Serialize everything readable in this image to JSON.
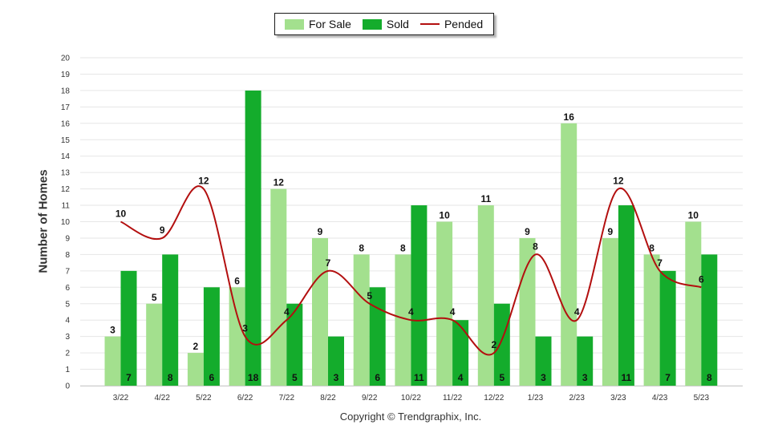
{
  "legend": {
    "for_sale_label": "For Sale",
    "sold_label": "Sold",
    "pended_label": "Pended"
  },
  "copyright": "Copyright © Trendgraphix, Inc.",
  "colors": {
    "for_sale": "#a3e08e",
    "sold": "#14ac2c",
    "pended": "#b30f0f",
    "gridline": "#e6e6e6",
    "axis_text": "#333333"
  },
  "chart_data": {
    "type": "bar",
    "categories": [
      "3/22",
      "4/22",
      "5/22",
      "6/22",
      "7/22",
      "8/22",
      "9/22",
      "10/22",
      "11/22",
      "12/22",
      "1/23",
      "2/23",
      "3/23",
      "4/23",
      "5/23"
    ],
    "series": [
      {
        "name": "For Sale",
        "type": "bar",
        "values": [
          3,
          5,
          2,
          6,
          12,
          9,
          8,
          8,
          10,
          11,
          9,
          16,
          9,
          8,
          10
        ]
      },
      {
        "name": "Sold",
        "type": "bar",
        "values": [
          7,
          8,
          6,
          18,
          5,
          3,
          6,
          11,
          4,
          5,
          3,
          3,
          11,
          7,
          8
        ]
      },
      {
        "name": "Pended",
        "type": "line",
        "smooth": true,
        "values": [
          10,
          9,
          12,
          3,
          4,
          7,
          5,
          4,
          4,
          2,
          8,
          4,
          12,
          7,
          6
        ]
      }
    ],
    "xlabel": "",
    "ylabel": "Number of Homes",
    "ylim": [
      0,
      20
    ],
    "yticks": [
      0,
      1,
      2,
      3,
      4,
      5,
      6,
      7,
      8,
      9,
      10,
      11,
      12,
      13,
      14,
      15,
      16,
      17,
      18,
      19,
      20
    ],
    "grid": true,
    "legend_position": "top-center"
  }
}
